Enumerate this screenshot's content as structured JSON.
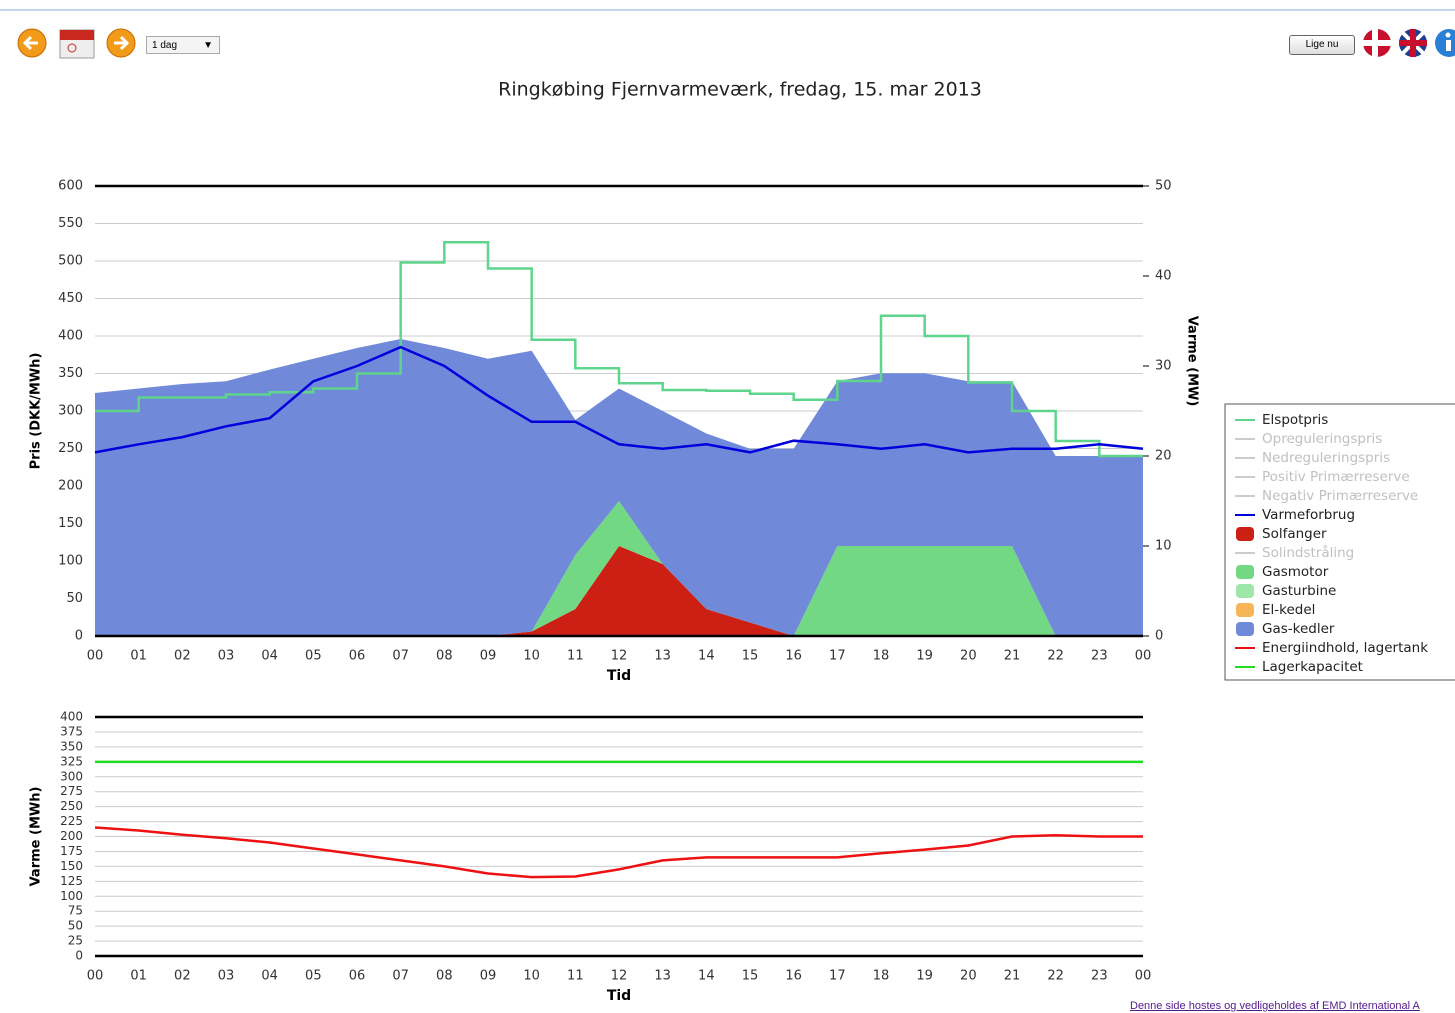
{
  "toolbar": {
    "range": "1 dag",
    "now_button": "Lige nu"
  },
  "chart_data": [
    {
      "type": "combo",
      "title": "Ringkøbing Fjernvarmeværk, fredag, 15. mar 2013",
      "y_label": "Pris (DKK/MWh)",
      "y2_label": "Varme (MW)",
      "x_label": "Tid",
      "categories": [
        "00",
        "01",
        "02",
        "03",
        "04",
        "05",
        "06",
        "07",
        "08",
        "09",
        "10",
        "11",
        "12",
        "13",
        "14",
        "15",
        "16",
        "17",
        "18",
        "19",
        "20",
        "21",
        "22",
        "23",
        "00"
      ],
      "ylim": [
        0,
        600
      ],
      "yticks": [
        0,
        50,
        100,
        150,
        200,
        250,
        300,
        350,
        400,
        450,
        500,
        550,
        600
      ],
      "y2lim": [
        0,
        50
      ],
      "y2ticks": [
        0,
        10,
        20,
        30,
        40,
        50
      ],
      "grid": true,
      "series": [
        {
          "name": "Elspotpris",
          "kind": "step",
          "color": "#5ed48c",
          "values": [
            300,
            318,
            318,
            322,
            325,
            330,
            350,
            498,
            525,
            490,
            395,
            357,
            337,
            328,
            327,
            323,
            315,
            340,
            427,
            400,
            338,
            300,
            260,
            240,
            240
          ]
        },
        {
          "name": "Opreguleringspris",
          "kind": "line",
          "hidden": true,
          "color": "#c0c0c0"
        },
        {
          "name": "Nedreguleringspris",
          "kind": "line",
          "hidden": true,
          "color": "#c0c0c0"
        },
        {
          "name": "Positiv Primærreserve",
          "kind": "line",
          "hidden": true,
          "color": "#c0c0c0"
        },
        {
          "name": "Negativ Primærreserve",
          "kind": "line",
          "hidden": true,
          "color": "#c0c0c0"
        },
        {
          "name": "Varmeforbrug",
          "kind": "line",
          "axis": "y2",
          "color": "#0000dd",
          "values": [
            20.4,
            21.3,
            22.1,
            23.3,
            24.2,
            28.3,
            30,
            32.1,
            30,
            26.7,
            23.8,
            23.8,
            21.3,
            20.8,
            21.3,
            20.4,
            21.7,
            21.3,
            20.8,
            21.3,
            20.4,
            20.8,
            20.8,
            21.3,
            20.8
          ]
        },
        {
          "name": "Solfanger",
          "kind": "area",
          "axis": "y2",
          "color": "#cc2015",
          "values": [
            0,
            0,
            0,
            0,
            0,
            0,
            0,
            0,
            0,
            0,
            0.5,
            3,
            10,
            8,
            3,
            1.5,
            0,
            0,
            0,
            0,
            0,
            0,
            0,
            0,
            0
          ]
        },
        {
          "name": "Solindstråling",
          "kind": "line",
          "hidden": true,
          "color": "#c0c0c0"
        },
        {
          "name": "Gasmotor",
          "kind": "area",
          "axis": "y2",
          "color": "#72d884",
          "values": [
            0,
            0,
            0,
            0,
            0,
            0,
            0,
            0,
            0,
            0,
            0,
            6,
            5,
            0,
            0,
            0,
            0,
            10,
            10,
            10,
            10,
            10,
            0,
            0,
            0
          ]
        },
        {
          "name": "Gasturbine",
          "kind": "area",
          "axis": "y2",
          "color": "#9de8a8",
          "values": [
            0,
            0,
            0,
            0,
            0,
            0,
            0,
            0,
            0,
            0,
            0,
            0,
            0,
            0,
            0,
            0,
            0,
            0,
            0,
            0,
            0,
            0,
            0,
            0,
            0
          ]
        },
        {
          "name": "El-kedel",
          "kind": "area",
          "axis": "y2",
          "color": "#f7b55a",
          "values": [
            0,
            0,
            0,
            0,
            0,
            0,
            0,
            0,
            0,
            0,
            0,
            0,
            0,
            0,
            0,
            0,
            0,
            0,
            0,
            0,
            0,
            0,
            0,
            0,
            0
          ]
        },
        {
          "name": "Gas-kedler",
          "kind": "area",
          "axis": "y2",
          "color": "#7189d9",
          "values": [
            27,
            27.5,
            28,
            28.3,
            29.6,
            30.8,
            32,
            33,
            32,
            30.8,
            31.2,
            15,
            12.5,
            17,
            19.5,
            19.3,
            20.8,
            18.3,
            19.2,
            19.2,
            18.3,
            18.3,
            20,
            20,
            20
          ]
        }
      ]
    },
    {
      "type": "line",
      "y_label": "Varme (MWh)",
      "x_label": "Tid",
      "categories": [
        "00",
        "01",
        "02",
        "03",
        "04",
        "05",
        "06",
        "07",
        "08",
        "09",
        "10",
        "11",
        "12",
        "13",
        "14",
        "15",
        "16",
        "17",
        "18",
        "19",
        "20",
        "21",
        "22",
        "23",
        "00"
      ],
      "ylim": [
        0,
        400
      ],
      "yticks": [
        0,
        25,
        50,
        75,
        100,
        125,
        150,
        175,
        200,
        225,
        250,
        275,
        300,
        325,
        350,
        375,
        400
      ],
      "grid": true,
      "series": [
        {
          "name": "Energiindhold, lagertank",
          "kind": "line",
          "color": "#ee1111",
          "values": [
            215,
            210,
            203,
            197,
            190,
            180,
            170,
            160,
            150,
            138,
            132,
            133,
            145,
            160,
            165,
            165,
            165,
            165,
            172,
            178,
            185,
            200,
            202,
            200,
            200
          ]
        },
        {
          "name": "Lagerkapacitet",
          "kind": "line",
          "color": "#22dd22",
          "values": [
            325,
            325,
            325,
            325,
            325,
            325,
            325,
            325,
            325,
            325,
            325,
            325,
            325,
            325,
            325,
            325,
            325,
            325,
            325,
            325,
            325,
            325,
            325,
            325,
            325
          ]
        }
      ]
    }
  ],
  "footer": "Denne side hostes og vedligeholdes af EMD International A"
}
